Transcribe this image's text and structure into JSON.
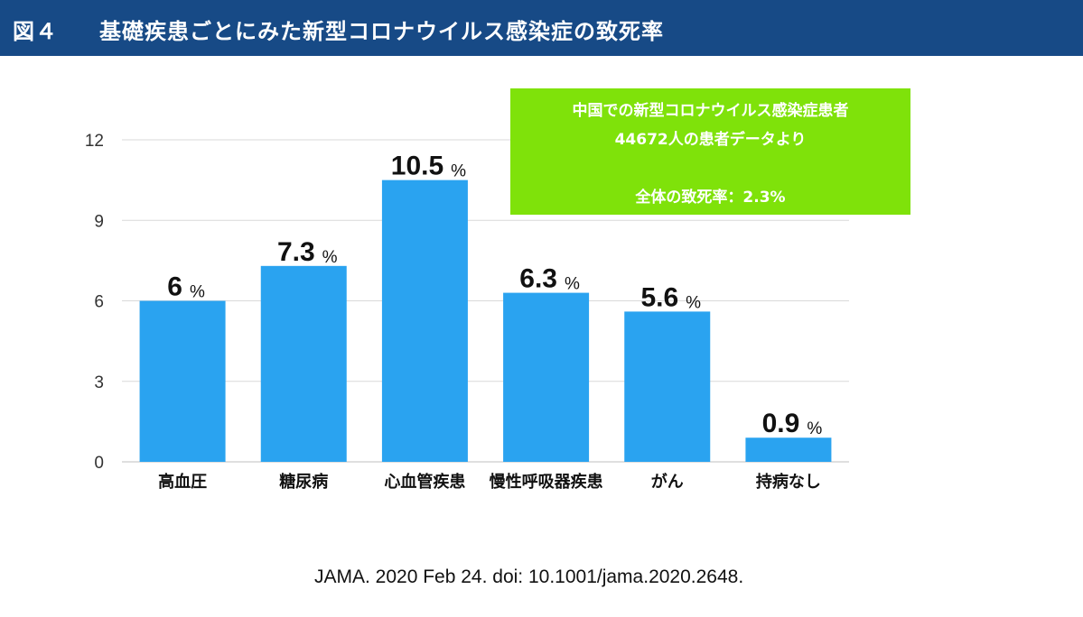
{
  "header": {
    "figure_number": "図４",
    "title": "基礎疾患ごとにみた新型コロナウイルス感染症の致死率"
  },
  "info_box": {
    "line1": "中国での新型コロナウイルス感染症患者",
    "line2": "44672人の患者データより",
    "line3": "全体の致死率：2.3%"
  },
  "source": "JAMA. 2020 Feb 24. doi: 10.1001/jama.2020.2648.",
  "colors": {
    "header_bg": "#174a86",
    "bar": "#2aa3f0",
    "info_box_bg": "#7fe20a",
    "grid": "#d9d9d9"
  },
  "chart_data": {
    "type": "bar",
    "title": "基礎疾患ごとにみた新型コロナウイルス感染症の致死率",
    "categories": [
      "高血圧",
      "糖尿病",
      "心血管疾患",
      "慢性呼吸器疾患",
      "がん",
      "持病なし"
    ],
    "values": [
      6,
      7.3,
      10.5,
      6.3,
      5.6,
      0.9
    ],
    "value_labels": [
      "6",
      "7.3",
      "10.5",
      "6.3",
      "5.6",
      "0.9"
    ],
    "unit": "%",
    "yticks": [
      0,
      3,
      6,
      9,
      12
    ],
    "ylim": [
      0,
      12
    ],
    "xlabel": "",
    "ylabel": "",
    "grid": true
  }
}
